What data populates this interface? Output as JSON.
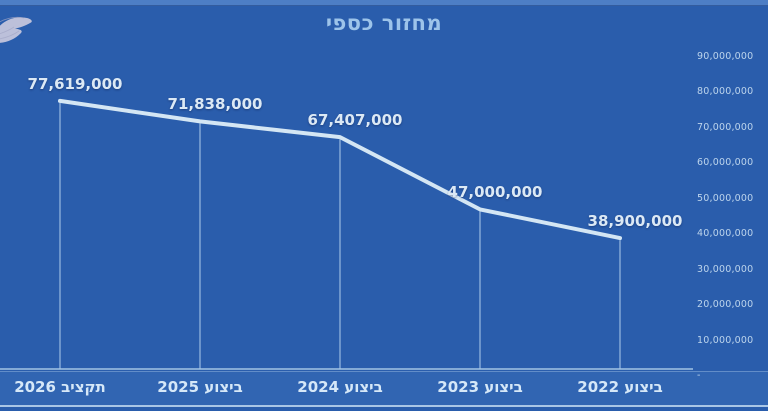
{
  "logo_icon": "dove-wing",
  "chart_data": {
    "type": "line",
    "title": "מחזור כספי",
    "categories": [
      "תקציב 2026",
      "ביצוע 2025",
      "ביצוע 2024",
      "ביצוע 2023",
      "ביצוע 2022"
    ],
    "values": [
      77619000,
      71838000,
      67407000,
      47000000,
      38900000
    ],
    "labels": [
      "77,619,000",
      "71,838,000",
      "67,407,000",
      "47,000,000",
      "38,900,000"
    ],
    "y_ticks": [
      "90,000,000",
      "80,000,000",
      "70,000,000",
      "60,000,000",
      "50,000,000",
      "40,000,000",
      "30,000,000",
      "20,000,000",
      "10,000,000",
      "-"
    ],
    "y_tick_values": [
      90000000,
      80000000,
      70000000,
      60000000,
      50000000,
      40000000,
      30000000,
      20000000,
      10000000,
      0
    ],
    "ylim": [
      0,
      90000000
    ],
    "grid": false,
    "legend": false,
    "axis_side": "right",
    "direction": "rtl"
  },
  "colors": {
    "background": "#2a5dac",
    "band": "#3165b2",
    "top_strip": "#4d7ec5",
    "line": "#d4e6f4",
    "axis_line": "#a9c9e8",
    "title_text": "#9dc4ea",
    "value_text": "#dce9f5",
    "category_text": "#d6e8f8",
    "tick_text": "#bcd4ec"
  }
}
